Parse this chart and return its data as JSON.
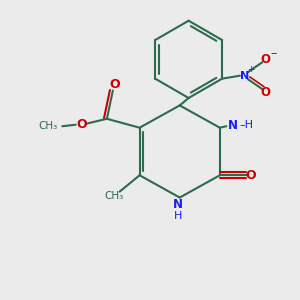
{
  "bg_color": "#ebebeb",
  "bond_color": "#2d6b4e",
  "N_color": "#1a1aff",
  "O_color": "#cc0000",
  "lw": 1.5,
  "figsize": [
    3.0,
    3.0
  ],
  "dpi": 100,
  "xlim": [
    -1.5,
    8.5
  ],
  "ylim": [
    -1.0,
    9.0
  ]
}
